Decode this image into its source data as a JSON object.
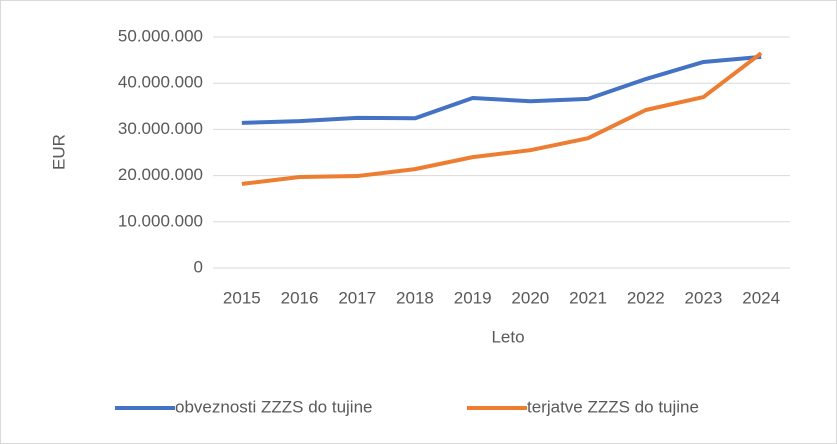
{
  "chart_data": {
    "type": "line",
    "categories": [
      "2015",
      "2016",
      "2017",
      "2018",
      "2019",
      "2020",
      "2021",
      "2022",
      "2023",
      "2024"
    ],
    "series": [
      {
        "name": "obveznosti ZZZS do tujine",
        "color": "#4472c4",
        "values": [
          31400000,
          31800000,
          32500000,
          32400000,
          36800000,
          36100000,
          36600000,
          40900000,
          44600000,
          45700000
        ]
      },
      {
        "name": "terjatve ZZZS do tujine",
        "color": "#ed7d31",
        "values": [
          18200000,
          19700000,
          19900000,
          21400000,
          24000000,
          25500000,
          28100000,
          34200000,
          37000000,
          46500000
        ]
      }
    ],
    "xlabel": "Leto",
    "ylabel": "EUR",
    "ylim": [
      0,
      50000000
    ],
    "yticks": [
      0,
      {
        "value": 10000000,
        "label": "10.000.000"
      },
      {
        "value": 20000000,
        "label": "20.000.000"
      },
      {
        "value": 30000000,
        "label": "30.000.000"
      },
      {
        "value": 40000000,
        "label": "40.000.000"
      },
      {
        "value": 50000000,
        "label": "50.000.000"
      }
    ],
    "grid": true,
    "legend": "bottom"
  }
}
